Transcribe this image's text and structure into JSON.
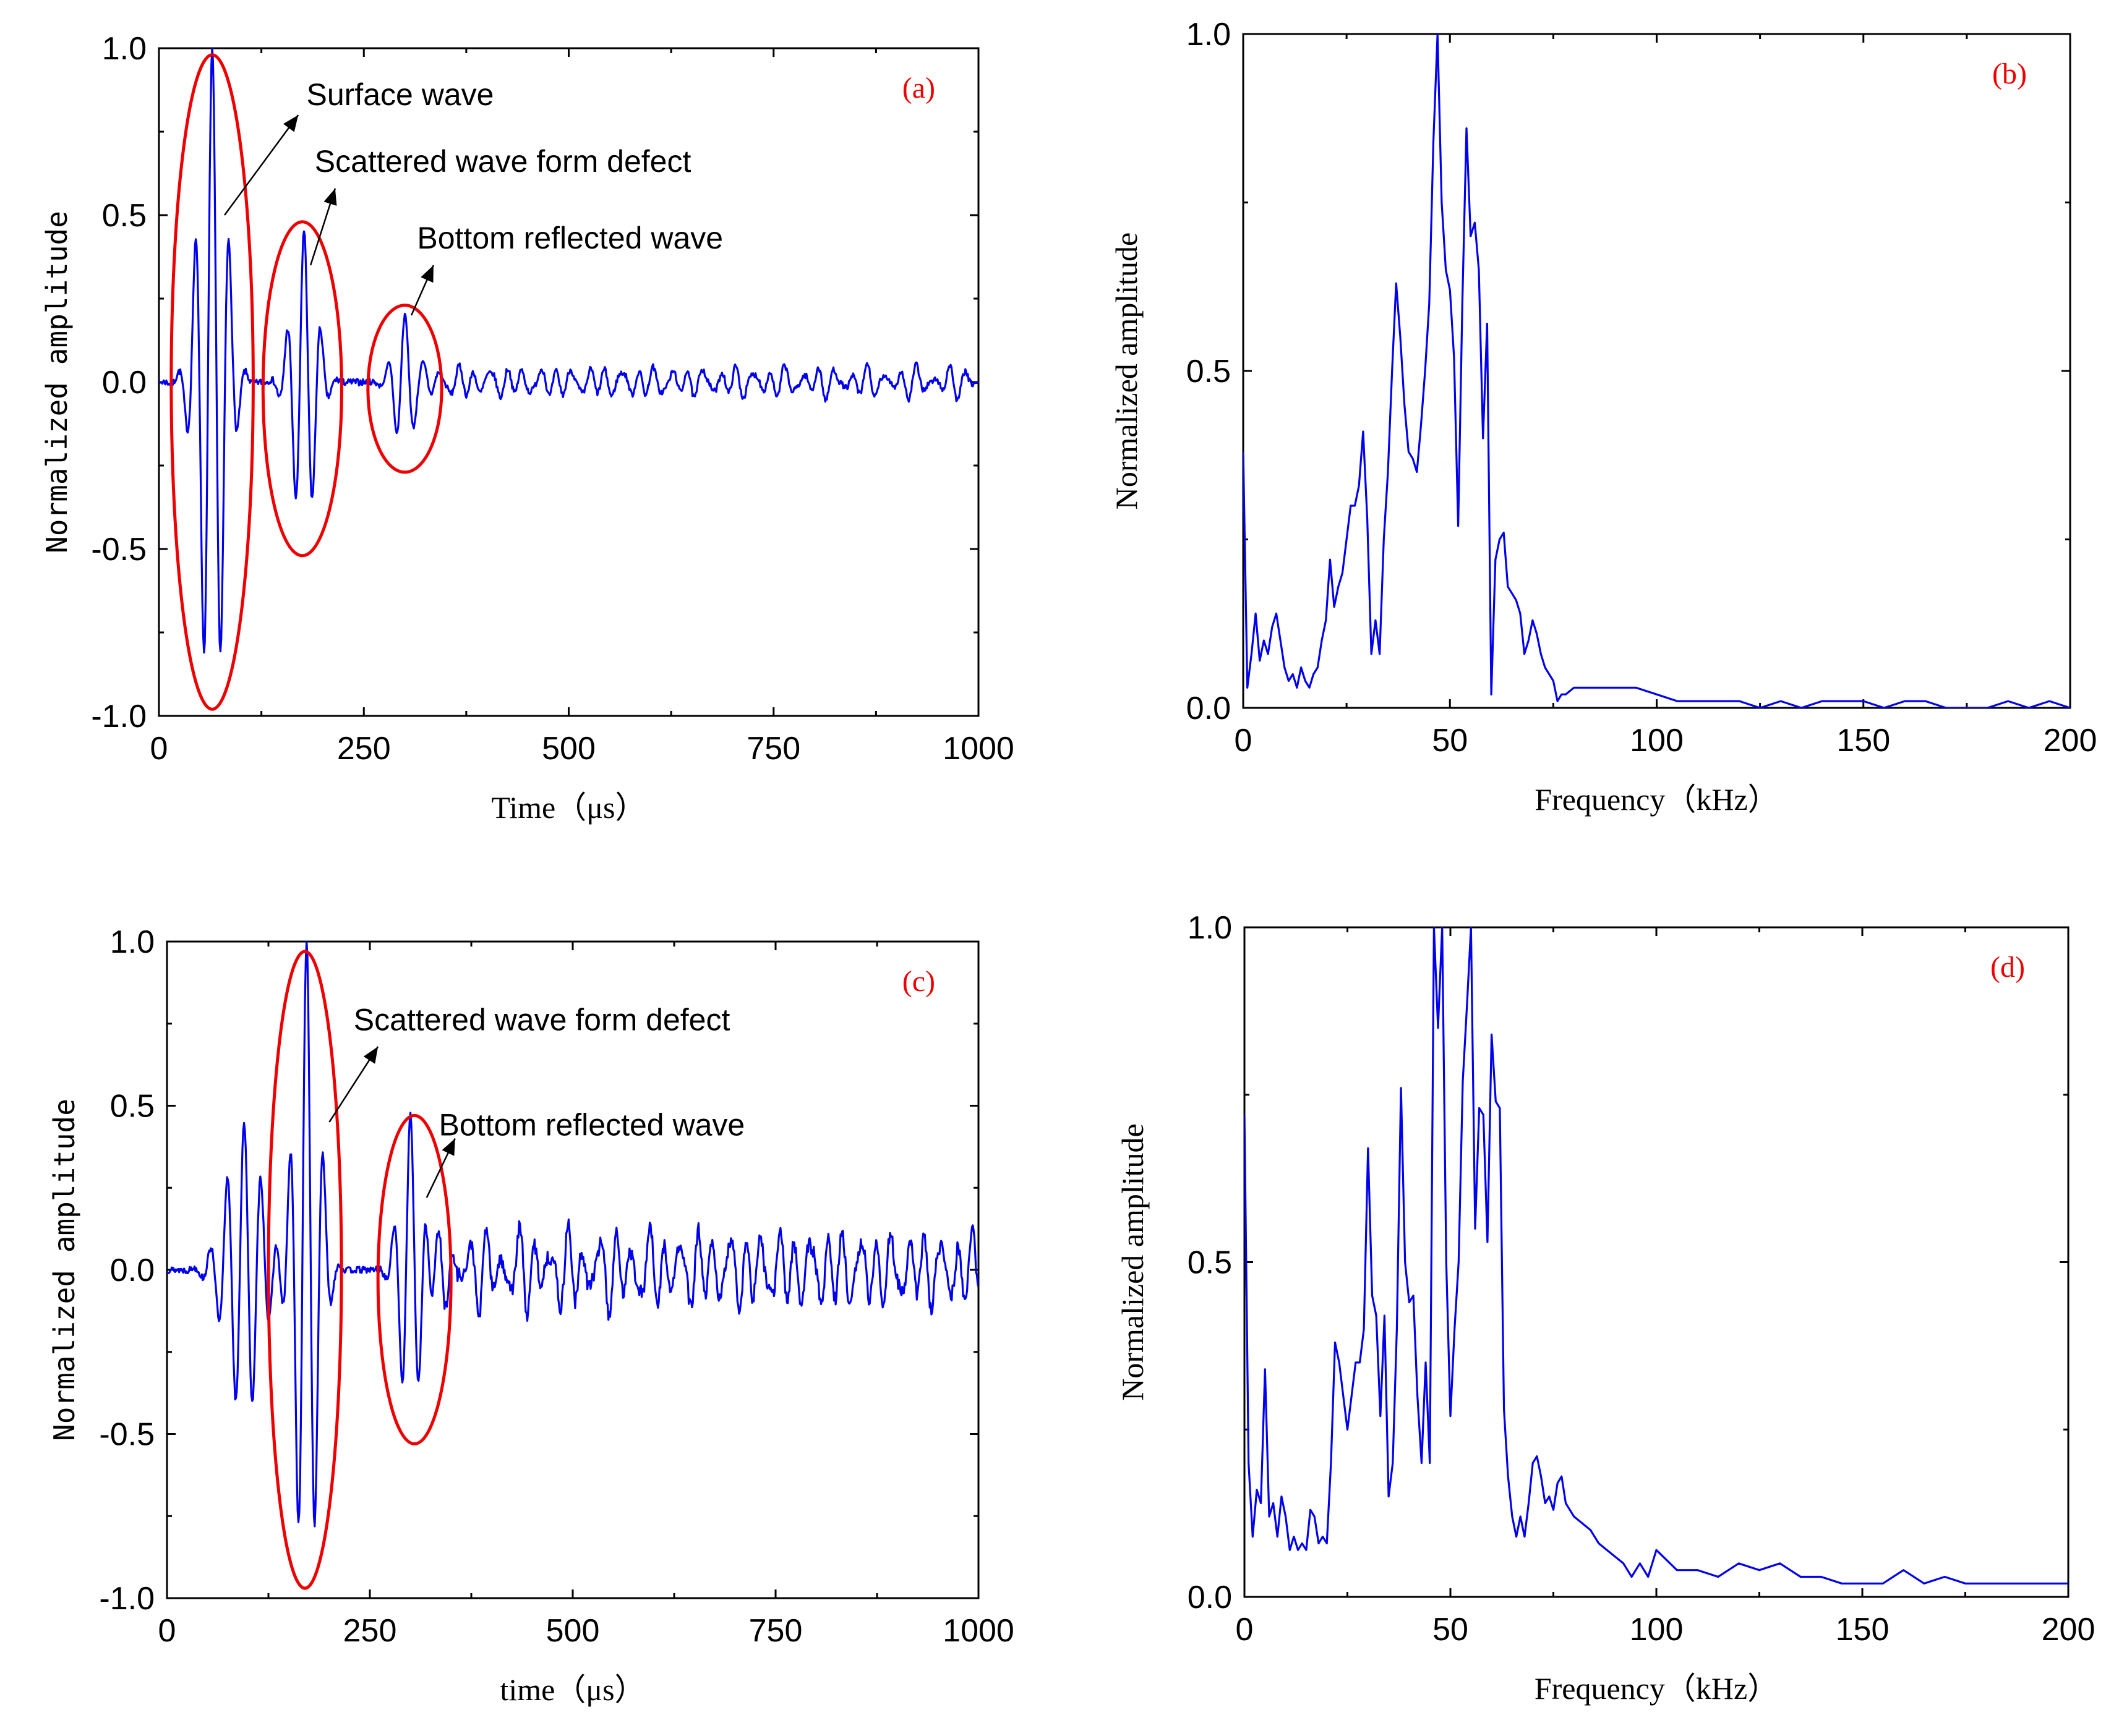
{
  "colors": {
    "series": "#0000ee",
    "annotation": "#ee0000",
    "axis": "#000000"
  },
  "chart_data": [
    {
      "id": "a",
      "type": "line",
      "panel_label": "(a)",
      "xlabel": "Time（μs）",
      "ylabel": "Normalized amplitude",
      "xlim": [
        0,
        1000
      ],
      "ylim": [
        -1.0,
        1.0
      ],
      "xticks": [
        "0",
        "250",
        "500",
        "750",
        "1000"
      ],
      "yticks": [
        "-1.0",
        "-0.5",
        "0.0",
        "0.5",
        "1.0"
      ],
      "signal": {
        "packets": [
          {
            "center": 65,
            "width": 22,
            "freq": 0.048,
            "amp": 1.0
          },
          {
            "center": 177,
            "width": 20,
            "freq": 0.048,
            "amp": 0.45
          },
          {
            "center": 300,
            "width": 18,
            "freq": 0.048,
            "amp": 0.2
          }
        ],
        "noise_start": 330,
        "noise_amp": 0.05,
        "noise_freq": 0.05,
        "seed": 7
      },
      "ellipses": [
        {
          "cx": 65,
          "cy": 0.0,
          "rx": 50,
          "ry": 0.98
        },
        {
          "cx": 175,
          "cy": -0.02,
          "rx": 48,
          "ry": 0.5
        },
        {
          "cx": 300,
          "cy": -0.02,
          "rx": 45,
          "ry": 0.25
        }
      ],
      "annotations": [
        {
          "text": "Surface wave",
          "tx": 180,
          "ty": 0.83,
          "ax0": 80,
          "ay0": 0.5,
          "ax1": 170,
          "ay1": 0.8
        },
        {
          "text": "Scattered wave form defect",
          "tx": 190,
          "ty": 0.63,
          "ax0": 185,
          "ay0": 0.35,
          "ax1": 215,
          "ay1": 0.58
        },
        {
          "text": "Bottom reflected wave",
          "tx": 315,
          "ty": 0.4,
          "ax0": 308,
          "ay0": 0.2,
          "ax1": 335,
          "ay1": 0.35
        }
      ]
    },
    {
      "id": "b",
      "type": "line",
      "panel_label": "(b)",
      "xlabel": "Frequency（kHz）",
      "ylabel": "Normalized amplitude",
      "xlim": [
        0,
        200
      ],
      "ylim": [
        0.0,
        1.0
      ],
      "xticks": [
        "0",
        "50",
        "100",
        "150",
        "200"
      ],
      "yticks": [
        "0.0",
        "0.5",
        "1.0"
      ],
      "x": [
        0,
        1,
        2,
        3,
        4,
        5,
        6,
        7,
        8,
        9,
        10,
        11,
        12,
        13,
        14,
        15,
        16,
        17,
        18,
        19,
        20,
        21,
        22,
        23,
        24,
        25,
        26,
        27,
        28,
        29,
        30,
        31,
        32,
        33,
        34,
        35,
        36,
        37,
        38,
        39,
        40,
        41,
        42,
        43,
        44,
        45,
        46,
        47,
        48,
        49,
        50,
        51,
        52,
        53,
        54,
        55,
        56,
        57,
        58,
        59,
        60,
        61,
        62,
        63,
        64,
        65,
        66,
        67,
        68,
        69,
        70,
        71,
        72,
        73,
        74,
        75,
        76,
        77,
        78,
        80,
        85,
        90,
        95,
        100,
        105,
        110,
        115,
        120,
        125,
        130,
        135,
        140,
        145,
        150,
        155,
        160,
        165,
        170,
        175,
        180,
        185,
        190,
        195,
        200
      ],
      "values": [
        0.38,
        0.03,
        0.08,
        0.14,
        0.07,
        0.1,
        0.08,
        0.12,
        0.14,
        0.1,
        0.06,
        0.04,
        0.05,
        0.03,
        0.06,
        0.04,
        0.03,
        0.05,
        0.06,
        0.1,
        0.13,
        0.22,
        0.15,
        0.18,
        0.2,
        0.25,
        0.3,
        0.3,
        0.33,
        0.41,
        0.28,
        0.08,
        0.13,
        0.08,
        0.25,
        0.35,
        0.5,
        0.63,
        0.55,
        0.45,
        0.38,
        0.37,
        0.35,
        0.42,
        0.5,
        0.6,
        0.84,
        1.0,
        0.75,
        0.65,
        0.62,
        0.52,
        0.27,
        0.6,
        0.86,
        0.7,
        0.72,
        0.65,
        0.4,
        0.57,
        0.02,
        0.22,
        0.25,
        0.26,
        0.18,
        0.17,
        0.16,
        0.14,
        0.08,
        0.1,
        0.13,
        0.11,
        0.08,
        0.06,
        0.05,
        0.04,
        0.01,
        0.02,
        0.02,
        0.03,
        0.03,
        0.03,
        0.03,
        0.02,
        0.01,
        0.01,
        0.01,
        0.01,
        0.0,
        0.01,
        0.0,
        0.01,
        0.01,
        0.01,
        0.0,
        0.01,
        0.01,
        0.0,
        0.0,
        0.0,
        0.01,
        0.0,
        0.01,
        0.0
      ]
    },
    {
      "id": "c",
      "type": "line",
      "panel_label": "(c)",
      "xlabel": "time（μs）",
      "ylabel": "Normalized amplitude",
      "xlim": [
        0,
        1000
      ],
      "ylim": [
        -1.0,
        1.0
      ],
      "xticks": [
        "0",
        "250",
        "500",
        "750",
        "1000"
      ],
      "yticks": [
        "-1.0",
        "-0.5",
        "0.0",
        "0.5",
        "1.0"
      ],
      "signal": {
        "packets": [
          {
            "center": 95,
            "width": 30,
            "freq": 0.048,
            "amp": 0.45
          },
          {
            "center": 172,
            "width": 20,
            "freq": 0.048,
            "amp": 1.0
          },
          {
            "center": 300,
            "width": 18,
            "freq": 0.048,
            "amp": 0.48
          }
        ],
        "noise_start": 340,
        "noise_amp": 0.13,
        "noise_freq": 0.05,
        "seed": 13
      },
      "ellipses": [
        {
          "cx": 170,
          "cy": 0.0,
          "rx": 45,
          "ry": 0.97
        },
        {
          "cx": 305,
          "cy": -0.03,
          "rx": 45,
          "ry": 0.5
        }
      ],
      "annotations": [
        {
          "text": "Scattered wave form defect",
          "tx": 230,
          "ty": 0.73,
          "ax0": 200,
          "ay0": 0.45,
          "ax1": 260,
          "ay1": 0.68
        },
        {
          "text": "Bottom reflected wave",
          "tx": 335,
          "ty": 0.41,
          "ax0": 320,
          "ay0": 0.22,
          "ax1": 355,
          "ay1": 0.4
        }
      ]
    },
    {
      "id": "d",
      "type": "line",
      "panel_label": "(d)",
      "xlabel": "Frequency（kHz）",
      "ylabel": "Normalized amplitude",
      "xlim": [
        0,
        200
      ],
      "ylim": [
        0.0,
        1.0
      ],
      "xticks": [
        "0",
        "50",
        "100",
        "150",
        "200"
      ],
      "yticks": [
        "0.0",
        "0.5",
        "1.0"
      ],
      "x": [
        0,
        1,
        2,
        3,
        4,
        5,
        6,
        7,
        8,
        9,
        10,
        11,
        12,
        13,
        14,
        15,
        16,
        17,
        18,
        19,
        20,
        21,
        22,
        23,
        24,
        25,
        26,
        27,
        28,
        29,
        30,
        31,
        32,
        33,
        34,
        35,
        36,
        37,
        38,
        39,
        40,
        41,
        42,
        43,
        44,
        45,
        46,
        47,
        48,
        49,
        50,
        51,
        52,
        53,
        54,
        55,
        56,
        57,
        58,
        59,
        60,
        61,
        62,
        63,
        64,
        65,
        66,
        67,
        68,
        69,
        70,
        71,
        72,
        73,
        74,
        75,
        76,
        77,
        78,
        79,
        80,
        82,
        84,
        86,
        88,
        90,
        92,
        94,
        96,
        98,
        100,
        105,
        110,
        115,
        120,
        125,
        130,
        135,
        140,
        145,
        150,
        155,
        160,
        165,
        170,
        175,
        180,
        185,
        190,
        195,
        200
      ],
      "values": [
        0.72,
        0.2,
        0.09,
        0.16,
        0.14,
        0.34,
        0.12,
        0.14,
        0.09,
        0.15,
        0.12,
        0.07,
        0.09,
        0.07,
        0.08,
        0.07,
        0.13,
        0.12,
        0.08,
        0.09,
        0.08,
        0.2,
        0.38,
        0.35,
        0.3,
        0.25,
        0.3,
        0.35,
        0.35,
        0.4,
        0.67,
        0.45,
        0.42,
        0.27,
        0.42,
        0.15,
        0.2,
        0.4,
        0.76,
        0.5,
        0.44,
        0.45,
        0.3,
        0.2,
        0.35,
        0.2,
        1.0,
        0.85,
        1.0,
        0.5,
        0.27,
        0.4,
        0.5,
        0.77,
        0.88,
        1.0,
        0.55,
        0.73,
        0.72,
        0.53,
        0.84,
        0.74,
        0.73,
        0.28,
        0.18,
        0.12,
        0.09,
        0.12,
        0.09,
        0.14,
        0.2,
        0.21,
        0.18,
        0.14,
        0.15,
        0.13,
        0.17,
        0.18,
        0.14,
        0.13,
        0.12,
        0.11,
        0.1,
        0.08,
        0.07,
        0.06,
        0.05,
        0.03,
        0.05,
        0.03,
        0.07,
        0.04,
        0.04,
        0.03,
        0.05,
        0.04,
        0.05,
        0.03,
        0.03,
        0.02,
        0.02,
        0.02,
        0.04,
        0.02,
        0.03,
        0.02,
        0.02,
        0.02,
        0.02,
        0.02,
        0.02
      ]
    }
  ]
}
